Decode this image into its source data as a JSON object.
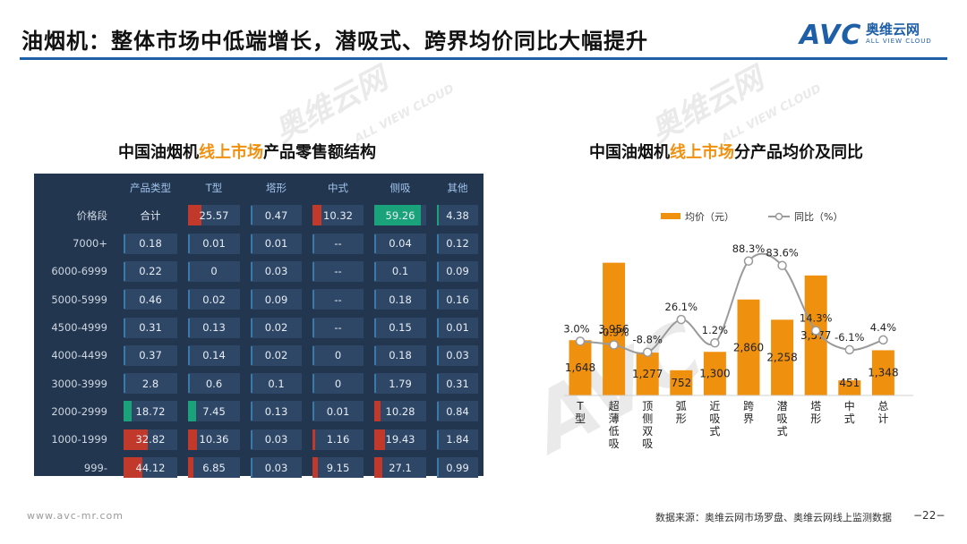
{
  "header": {
    "title": "油烟机：整体市场中低端增长，潜吸式、跨界均价同比大幅提升"
  },
  "logo": {
    "mark": "AVC",
    "cn": "奥维云网",
    "en": "ALL VIEW CLOUD"
  },
  "watermark": {
    "cn": "奥维云网",
    "en": "ALL VIEW CLOUD",
    "mark": "AVC"
  },
  "left_title": {
    "pre": "中国油烟机",
    "hl": "线上市场",
    "post": "产品零售额结构"
  },
  "right_title": {
    "pre": "中国油烟机",
    "hl": "线上市场",
    "post": "分产品均价及同比"
  },
  "table": {
    "headers": [
      "",
      "产品类型",
      "T型",
      "塔形",
      "中式",
      "侧吸",
      "其他"
    ],
    "rows": [
      {
        "label": "价格段",
        "cells": [
          "合计",
          "25.57",
          "0.47",
          "10.32",
          "59.26",
          "4.38"
        ]
      },
      {
        "label": "7000+",
        "cells": [
          "0.18",
          "0.01",
          "0.01",
          "--",
          "0.04",
          "0.12"
        ]
      },
      {
        "label": "6000-6999",
        "cells": [
          "0.22",
          "0",
          "0.03",
          "--",
          "0.1",
          "0.09"
        ]
      },
      {
        "label": "5000-5999",
        "cells": [
          "0.46",
          "0.02",
          "0.09",
          "--",
          "0.18",
          "0.16"
        ]
      },
      {
        "label": "4500-4999",
        "cells": [
          "0.31",
          "0.13",
          "0.02",
          "--",
          "0.15",
          "0.01"
        ]
      },
      {
        "label": "4000-4499",
        "cells": [
          "0.37",
          "0.14",
          "0.02",
          "0",
          "0.18",
          "0.03"
        ]
      },
      {
        "label": "3000-3999",
        "cells": [
          "2.8",
          "0.6",
          "0.1",
          "0",
          "1.79",
          "0.31"
        ]
      },
      {
        "label": "2000-2999",
        "cells": [
          "18.72",
          "7.45",
          "0.13",
          "0.01",
          "10.28",
          "0.84"
        ]
      },
      {
        "label": "1000-1999",
        "cells": [
          "32.82",
          "10.36",
          "0.03",
          "1.16",
          "19.43",
          "1.84"
        ]
      },
      {
        "label": "999-",
        "cells": [
          "44.12",
          "6.85",
          "0.03",
          "9.15",
          "27.1",
          "0.99"
        ]
      }
    ],
    "colors": {
      "up": "#c0392b",
      "down": "#1aa37a",
      "neutral": "#3a7aa8"
    }
  },
  "chart_data": {
    "type": "bar",
    "categories": [
      "T型",
      "超薄低吸",
      "顶侧双吸",
      "弧形",
      "近吸式",
      "跨界",
      "潜吸式",
      "塔形",
      "中式",
      "总计"
    ],
    "series": [
      {
        "name": "均价（元）",
        "type": "bar",
        "color": "#f0900f",
        "values": [
          1648,
          3956,
          1277,
          752,
          1300,
          2860,
          2258,
          3577,
          451,
          1348
        ],
        "labels": [
          "1,648",
          "3,956",
          "1,277",
          "752",
          "1,300",
          "2,860",
          "2,258",
          "3,577",
          "451",
          "1,348"
        ]
      },
      {
        "name": "同比（%）",
        "type": "line",
        "color": "#9a9a9a",
        "values": [
          3.0,
          -0.9,
          -8.8,
          26.1,
          1.2,
          88.3,
          83.6,
          14.3,
          -6.1,
          4.4
        ],
        "labels": [
          "3.0%",
          "-0.9%",
          "-8.8%",
          "26.1%",
          "1.2%",
          "88.3%",
          "83.6%",
          "14.3%",
          "-6.1%",
          "4.4%"
        ]
      }
    ],
    "legend": [
      "均价（元）",
      "同比（%）"
    ],
    "legend_position": "top-center",
    "grid": false
  },
  "footer": {
    "url": "www.avc-mr.com",
    "source": "数据来源：奥维云网市场罗盘、奥维云网线上监测数据",
    "page": "−22−"
  }
}
